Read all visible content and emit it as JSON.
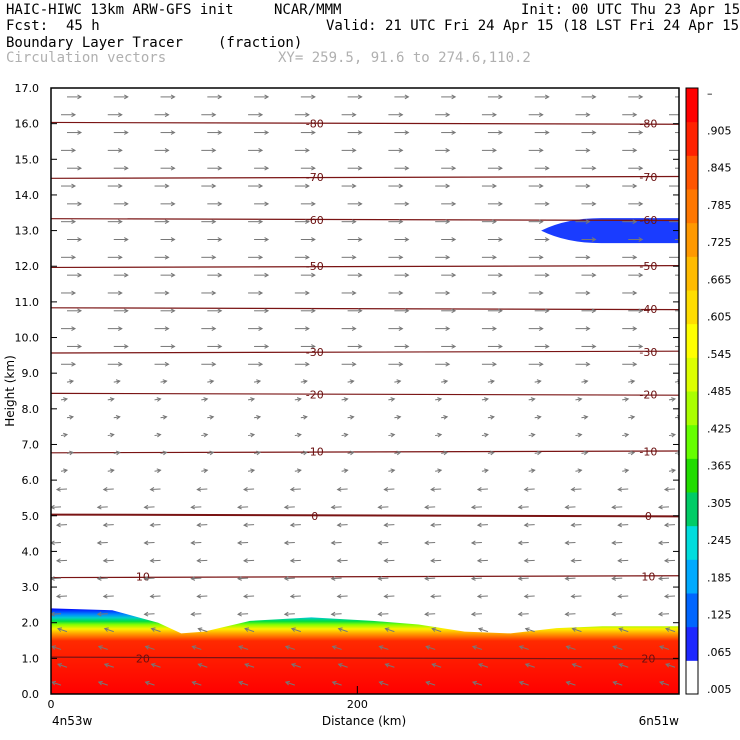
{
  "header": {
    "model": "HAIC-HIWC 13km ARW-GFS init",
    "org": "NCAR/MMM",
    "init": "Init: 00 UTC Thu 23 Apr 15",
    "fcst_label": "Fcst:",
    "fcst_value": "45 h",
    "valid": "Valid: 21 UTC Fri 24 Apr 15 (18 LST Fri 24 Apr 15)",
    "field": "Boundary Layer Tracer",
    "units": "(fraction)",
    "overlay": "Circulation vectors",
    "xy": "XY= 259.5, 91.6 to 274.6,110.2"
  },
  "colors": {
    "frame": "#000000",
    "isotherm": "#7a1414",
    "vector": "#777777",
    "tracer_low": "#0000ff",
    "tracer_high": "#ff0000"
  },
  "chart_data": {
    "type": "cross-section",
    "title": "Boundary Layer Tracer",
    "xlabel": "Distance (km)",
    "ylabel": "Height (km)",
    "x_range_km": [
      0,
      410
    ],
    "ylim": [
      0,
      17
    ],
    "y_ticks": [
      "0.0",
      "1.0",
      "2.0",
      "3.0",
      "4.0",
      "5.0",
      "6.0",
      "7.0",
      "8.0",
      "9.0",
      "10.0",
      "11.0",
      "12.0",
      "13.0",
      "14.0",
      "15.0",
      "16.0",
      "17.0"
    ],
    "x_ticks": [
      {
        "value": 0,
        "label": "0"
      },
      {
        "value": 200,
        "label": "200"
      }
    ],
    "x_endpoints": {
      "left": "4n53w",
      "right": "6n51w"
    },
    "colorbar_labels": [
      ".005",
      ".065",
      ".125",
      ".185",
      ".245",
      ".305",
      ".365",
      ".425",
      ".485",
      ".545",
      ".605",
      ".665",
      ".725",
      ".785",
      ".845",
      ".905",
      "–"
    ],
    "tracer_top_km": [
      {
        "x": 0,
        "z": 2.4
      },
      {
        "x": 40,
        "z": 2.35
      },
      {
        "x": 70,
        "z": 2.0
      },
      {
        "x": 85,
        "z": 1.7
      },
      {
        "x": 100,
        "z": 1.75
      },
      {
        "x": 130,
        "z": 2.05
      },
      {
        "x": 170,
        "z": 2.15
      },
      {
        "x": 210,
        "z": 2.05
      },
      {
        "x": 240,
        "z": 1.95
      },
      {
        "x": 270,
        "z": 1.75
      },
      {
        "x": 300,
        "z": 1.7
      },
      {
        "x": 330,
        "z": 1.85
      },
      {
        "x": 360,
        "z": 1.9
      },
      {
        "x": 410,
        "z": 1.9
      }
    ],
    "upper_tracer_blob": {
      "x_start": 320,
      "x_end": 410,
      "z_center": 13.0,
      "half_depth": 0.35
    },
    "isotherms": [
      {
        "label": "-80",
        "z": 16.0
      },
      {
        "label": "-70",
        "z": 14.5
      },
      {
        "label": "-60",
        "z": 13.3
      },
      {
        "label": "-50",
        "z": 12.0
      },
      {
        "label": "-40",
        "z": 10.8
      },
      {
        "label": "-30",
        "z": 9.6
      },
      {
        "label": "-20",
        "z": 8.4
      },
      {
        "label": "-10",
        "z": 6.8
      },
      {
        "label": "0",
        "z": 5.0
      },
      {
        "label": "10",
        "z": 3.3
      },
      {
        "label": "20",
        "z": 1.0
      }
    ],
    "isotherm_labels_shown": [
      {
        "label": "-80",
        "pos": [
          "mid",
          "right"
        ]
      },
      {
        "label": "-70",
        "pos": [
          "mid",
          "right"
        ]
      },
      {
        "label": "-60",
        "pos": [
          "mid",
          "right"
        ]
      },
      {
        "label": "-50",
        "pos": [
          "mid",
          "right"
        ]
      },
      {
        "label": "-40",
        "pos": [
          "right"
        ]
      },
      {
        "label": "-30",
        "pos": [
          "mid",
          "right"
        ]
      },
      {
        "label": "-20",
        "pos": [
          "mid",
          "right"
        ]
      },
      {
        "label": "-10",
        "pos": [
          "mid",
          "right"
        ]
      },
      {
        "label": "0",
        "pos": [
          "mid",
          "right"
        ]
      },
      {
        "label": "10",
        "pos": [
          "left",
          "right"
        ]
      },
      {
        "label": "20",
        "pos": [
          "left",
          "right"
        ]
      }
    ]
  }
}
